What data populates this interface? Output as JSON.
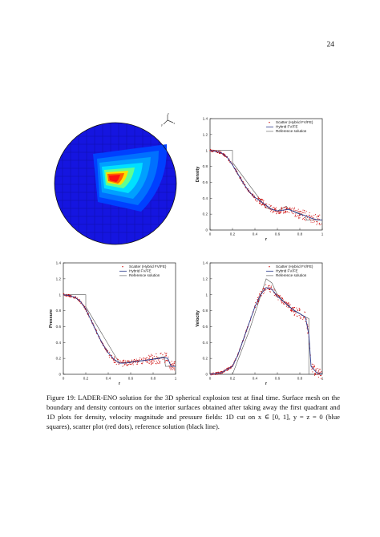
{
  "page_number": "24",
  "figure_caption": "Figure 19: LADER-ENO solution for the 3D spherical explosion test at final time. Surface mesh on the boundary and density contours on the interior surfaces obtained after taking away the first quadrant and 1D plots for density, velocity magnitude and pressure fields: 1D cut on x ∈ [0, 1], y = z = 0 (blue squares), scatter plot (red dots), reference solution (black line).",
  "contour": {
    "axis_labels": [
      "x",
      "y",
      "z"
    ],
    "colors": [
      "#1a1aff",
      "#0050ff",
      "#0080ff",
      "#00c0ff",
      "#40ffff",
      "#ffd000",
      "#ff4000",
      "#ff0000"
    ]
  },
  "legend": {
    "scatter": "Scatter (Hybrid FV/FE)",
    "hybrid": "Hybrid FV/FE",
    "reference": "Reference solution"
  },
  "colors": {
    "scatter": "#cc0000",
    "hybrid": "#2b3a8c",
    "reference": "#555555"
  },
  "chart_data": [
    {
      "type": "line",
      "ylabel": "Density",
      "xlabel": "r",
      "xlim": [
        0,
        1
      ],
      "ylim": [
        0,
        1.4
      ],
      "xticks": [
        "0",
        "0.2",
        "0.4",
        "0.6",
        "0.8",
        "1"
      ],
      "yticks": [
        "0",
        "0.2",
        "0.4",
        "0.6",
        "0.8",
        "1",
        "1.2",
        "1.4"
      ],
      "legend_position": "top-right",
      "series": [
        {
          "name": "Hybrid FV/FE",
          "x": [
            0,
            0.05,
            0.1,
            0.15,
            0.2,
            0.25,
            0.3,
            0.35,
            0.4,
            0.45,
            0.5,
            0.55,
            0.6,
            0.65,
            0.7,
            0.75,
            0.8,
            0.85,
            0.9,
            0.95,
            1.0
          ],
          "y": [
            1.0,
            0.99,
            0.97,
            0.92,
            0.82,
            0.7,
            0.58,
            0.48,
            0.41,
            0.36,
            0.31,
            0.26,
            0.24,
            0.25,
            0.26,
            0.23,
            0.2,
            0.18,
            0.15,
            0.13,
            0.125
          ]
        },
        {
          "name": "Reference solution",
          "x": [
            0,
            0.2,
            0.2,
            0.5,
            0.6,
            0.68,
            0.7,
            0.85,
            0.86,
            1.0
          ],
          "y": [
            1.0,
            1.0,
            0.85,
            0.28,
            0.24,
            0.3,
            0.26,
            0.18,
            0.125,
            0.125
          ]
        }
      ]
    },
    {
      "type": "line",
      "ylabel": "Pressure",
      "xlabel": "r",
      "xlim": [
        0,
        1
      ],
      "ylim": [
        0,
        1.4
      ],
      "xticks": [
        "0",
        "0.2",
        "0.4",
        "0.6",
        "0.8",
        "1"
      ],
      "yticks": [
        "0",
        "0.2",
        "0.4",
        "0.6",
        "0.8",
        "1",
        "1.2",
        "1.4"
      ],
      "legend_position": "top-right",
      "series": [
        {
          "name": "Hybrid FV/FE",
          "x": [
            0,
            0.05,
            0.1,
            0.15,
            0.2,
            0.25,
            0.3,
            0.35,
            0.4,
            0.45,
            0.5,
            0.55,
            0.6,
            0.65,
            0.7,
            0.75,
            0.8,
            0.85,
            0.9,
            0.93,
            0.96,
            1.0
          ],
          "y": [
            1.0,
            0.99,
            0.97,
            0.92,
            0.82,
            0.67,
            0.52,
            0.38,
            0.27,
            0.19,
            0.14,
            0.14,
            0.15,
            0.16,
            0.17,
            0.18,
            0.19,
            0.2,
            0.21,
            0.2,
            0.1,
            0.1
          ]
        },
        {
          "name": "Reference solution",
          "x": [
            0,
            0.2,
            0.2,
            0.5,
            0.6,
            0.75,
            0.9,
            0.91,
            1.0
          ],
          "y": [
            1.0,
            1.0,
            0.85,
            0.14,
            0.16,
            0.18,
            0.22,
            0.1,
            0.1
          ]
        }
      ]
    },
    {
      "type": "line",
      "ylabel": "Velocity",
      "xlabel": "r",
      "xlim": [
        0,
        1
      ],
      "ylim": [
        0,
        1.4
      ],
      "xticks": [
        "0",
        "0.2",
        "0.4",
        "0.6",
        "0.8",
        "1"
      ],
      "yticks": [
        "0",
        "0.2",
        "0.4",
        "0.6",
        "0.8",
        "1",
        "1.2",
        "1.4"
      ],
      "legend_position": "top-right",
      "series": [
        {
          "name": "Hybrid FV/FE",
          "x": [
            0,
            0.1,
            0.2,
            0.25,
            0.3,
            0.35,
            0.4,
            0.45,
            0.5,
            0.55,
            0.6,
            0.65,
            0.7,
            0.75,
            0.8,
            0.85,
            0.88,
            0.9,
            0.95,
            1.0
          ],
          "y": [
            0,
            0.02,
            0.1,
            0.25,
            0.45,
            0.65,
            0.85,
            1.0,
            1.09,
            1.07,
            0.98,
            0.92,
            0.86,
            0.8,
            0.76,
            0.72,
            0.5,
            0.1,
            0.02,
            0.0
          ]
        },
        {
          "name": "Reference solution",
          "x": [
            0,
            0.2,
            0.35,
            0.5,
            0.55,
            0.6,
            0.7,
            0.85,
            0.88,
            0.88,
            1.0
          ],
          "y": [
            0,
            0.0,
            0.55,
            1.2,
            1.15,
            1.0,
            0.85,
            0.72,
            0.7,
            0.0,
            0.0
          ]
        }
      ]
    }
  ]
}
